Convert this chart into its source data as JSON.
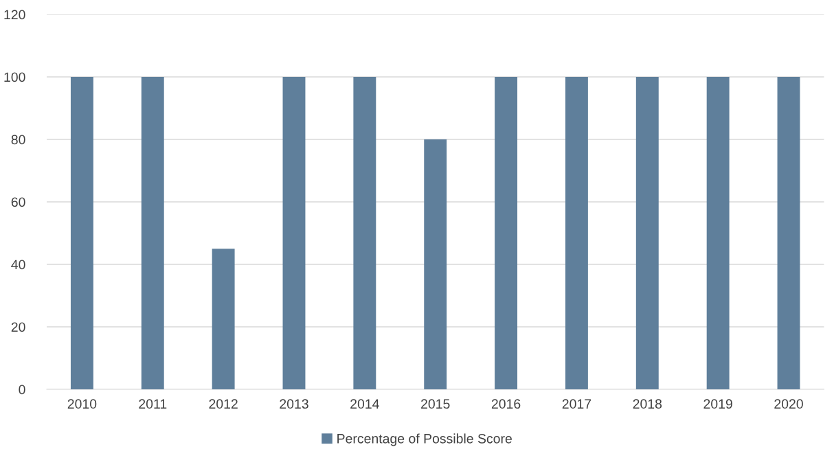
{
  "chart_data": {
    "type": "bar",
    "categories": [
      "2010",
      "2011",
      "2012",
      "2013",
      "2014",
      "2015",
      "2016",
      "2017",
      "2018",
      "2019",
      "2020"
    ],
    "series": [
      {
        "name": "Percentage of Possible Score",
        "color": "#5f7f9b",
        "values": [
          100,
          100,
          45,
          100,
          100,
          80,
          100,
          100,
          100,
          100,
          100
        ]
      }
    ],
    "ylim": [
      0,
      120
    ],
    "yticks": [
      0,
      20,
      40,
      60,
      80,
      100,
      120
    ],
    "grid": "y",
    "legend": "bottom"
  }
}
